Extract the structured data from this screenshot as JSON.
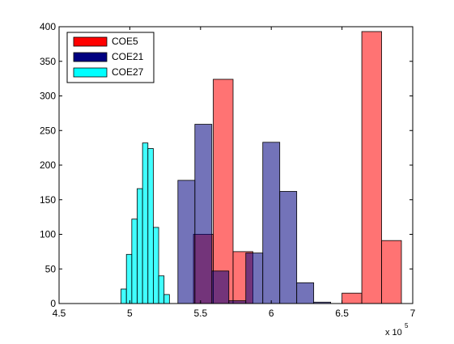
{
  "chart_data": {
    "type": "bar",
    "subtype": "overlapping-histogram",
    "title": "",
    "xlabel": "",
    "ylabel": "",
    "xlim": [
      4.5,
      7.0
    ],
    "ylim": [
      0,
      400
    ],
    "x_exponent_label": "x 10",
    "x_exponent_power": "5",
    "xticks": [
      "4.5",
      "5",
      "5.5",
      "6",
      "6.5",
      "7"
    ],
    "xtick_values": [
      4.5,
      5.0,
      5.5,
      6.0,
      6.5,
      7.0
    ],
    "yticks": [
      "0",
      "50",
      "100",
      "150",
      "200",
      "250",
      "300",
      "350",
      "400"
    ],
    "ytick_values": [
      0,
      50,
      100,
      150,
      200,
      250,
      300,
      350,
      400
    ],
    "grid": false,
    "legend_position": "top-left",
    "series": [
      {
        "name": "COE5",
        "color": "#ff0000",
        "opacity": 0.55,
        "bins": [
          {
            "start": 5.45,
            "end": 5.59,
            "value": 100
          },
          {
            "start": 5.59,
            "end": 5.73,
            "value": 324
          },
          {
            "start": 5.73,
            "end": 5.87,
            "value": 75
          },
          {
            "start": 6.5,
            "end": 6.64,
            "value": 15
          },
          {
            "start": 6.64,
            "end": 6.78,
            "value": 393
          },
          {
            "start": 6.78,
            "end": 6.92,
            "value": 91
          }
        ]
      },
      {
        "name": "COE21",
        "color": "#000080",
        "opacity": 0.55,
        "bins": [
          {
            "start": 5.34,
            "end": 5.46,
            "value": 178
          },
          {
            "start": 5.46,
            "end": 5.58,
            "value": 259
          },
          {
            "start": 5.58,
            "end": 5.7,
            "value": 47
          },
          {
            "start": 5.7,
            "end": 5.82,
            "value": 4
          },
          {
            "start": 5.82,
            "end": 5.94,
            "value": 73
          },
          {
            "start": 5.94,
            "end": 6.06,
            "value": 233
          },
          {
            "start": 6.06,
            "end": 6.18,
            "value": 162
          },
          {
            "start": 6.18,
            "end": 6.3,
            "value": 30
          },
          {
            "start": 6.3,
            "end": 6.42,
            "value": 2
          }
        ]
      },
      {
        "name": "COE27",
        "color": "#00ffff",
        "opacity": 0.75,
        "bins": [
          {
            "start": 4.938,
            "end": 4.976,
            "value": 21
          },
          {
            "start": 4.976,
            "end": 5.014,
            "value": 71
          },
          {
            "start": 5.014,
            "end": 5.052,
            "value": 122
          },
          {
            "start": 5.052,
            "end": 5.09,
            "value": 166
          },
          {
            "start": 5.09,
            "end": 5.128,
            "value": 232
          },
          {
            "start": 5.128,
            "end": 5.166,
            "value": 224
          },
          {
            "start": 5.166,
            "end": 5.204,
            "value": 110
          },
          {
            "start": 5.204,
            "end": 5.242,
            "value": 40
          },
          {
            "start": 5.242,
            "end": 5.28,
            "value": 13
          }
        ]
      }
    ]
  }
}
